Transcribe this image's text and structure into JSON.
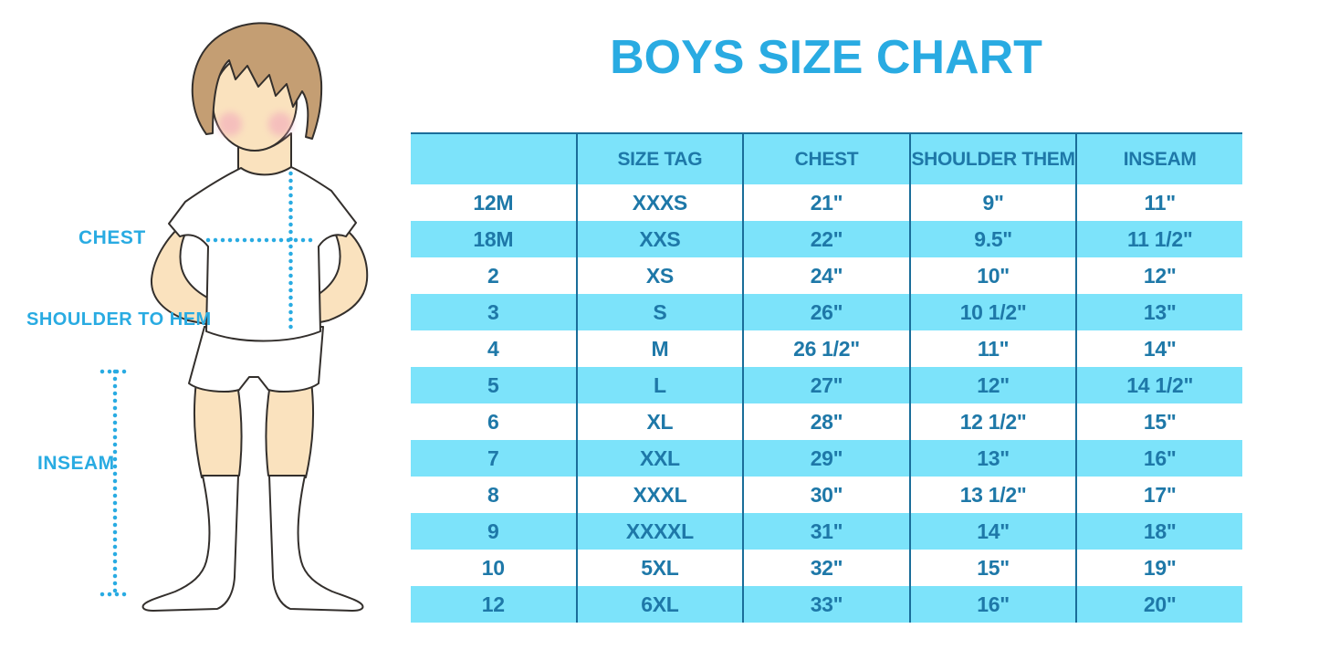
{
  "title": "BOYS SIZE CHART",
  "figure": {
    "labels": {
      "chest": "CHEST",
      "shoulder_to_hem": "SHOULDER TO HEM",
      "inseam": "INSEAM"
    }
  },
  "chart_data": {
    "type": "table",
    "title": "BOYS SIZE CHART",
    "columns": [
      "",
      "SIZE TAG",
      "CHEST",
      "SHOULDER THEM",
      "INSEAM"
    ],
    "rows": [
      [
        "12M",
        "XXXS",
        "21\"",
        "9\"",
        "11\""
      ],
      [
        "18M",
        "XXS",
        "22\"",
        "9.5\"",
        "11 1/2\""
      ],
      [
        "2",
        "XS",
        "24\"",
        "10\"",
        "12\""
      ],
      [
        "3",
        "S",
        "26\"",
        "10 1/2\"",
        "13\""
      ],
      [
        "4",
        "M",
        "26 1/2\"",
        "11\"",
        "14\""
      ],
      [
        "5",
        "L",
        "27\"",
        "12\"",
        "14 1/2\""
      ],
      [
        "6",
        "XL",
        "28\"",
        "12 1/2\"",
        "15\""
      ],
      [
        "7",
        "XXL",
        "29\"",
        "13\"",
        "16\""
      ],
      [
        "8",
        "XXXL",
        "30\"",
        "13 1/2\"",
        "17\""
      ],
      [
        "9",
        "XXXXL",
        "31\"",
        "14\"",
        "18\""
      ],
      [
        "10",
        "5XL",
        "32\"",
        "15\"",
        "19\""
      ],
      [
        "12",
        "6XL",
        "33\"",
        "16\"",
        "20\""
      ]
    ]
  },
  "colors": {
    "accent_blue": "#29ABE2",
    "table_fill_light_blue": "#7CE3FA",
    "table_divider": "#1A6D99",
    "table_text": "#1E78A8",
    "skin": "#FAE2BE",
    "hair": "#C49E73",
    "blush": "#F2A8BC"
  }
}
